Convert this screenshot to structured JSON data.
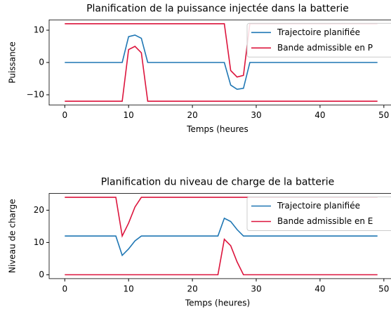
{
  "chart_data": [
    {
      "type": "line",
      "title": "Planification de la puissance injectée dans la batterie",
      "xlabel": "Temps (heures",
      "ylabel": "Puissance",
      "x": [
        0,
        1,
        2,
        3,
        4,
        5,
        6,
        7,
        8,
        9,
        10,
        11,
        12,
        13,
        14,
        15,
        16,
        17,
        18,
        19,
        20,
        21,
        22,
        23,
        24,
        25,
        26,
        27,
        28,
        29,
        30,
        31,
        32,
        33,
        34,
        35,
        36,
        37,
        38,
        39,
        40,
        41,
        42,
        43,
        44,
        45,
        46,
        47,
        48,
        49
      ],
      "series": [
        {
          "name": "Trajectoire planifiée",
          "color": "#1f77b4",
          "values": [
            0,
            0,
            0,
            0,
            0,
            0,
            0,
            0,
            0,
            0,
            8,
            8.5,
            7.5,
            0,
            0,
            0,
            0,
            0,
            0,
            0,
            0,
            0,
            0,
            0,
            0,
            0,
            -7,
            -8.3,
            -8,
            0,
            0,
            0,
            0,
            0,
            0,
            0,
            0,
            0,
            0,
            0,
            0,
            0,
            0,
            0,
            0,
            0,
            0,
            0,
            0,
            0
          ]
        },
        {
          "name": "Bande admissible en P",
          "color": "#dc143c",
          "values": [
            12,
            12,
            12,
            12,
            12,
            12,
            12,
            12,
            12,
            12,
            12,
            12,
            12,
            12,
            12,
            12,
            12,
            12,
            12,
            12,
            12,
            12,
            12,
            12,
            12,
            12,
            -2.5,
            -4.5,
            -4,
            12,
            12,
            12,
            12,
            12,
            12,
            12,
            12,
            12,
            12,
            12,
            12,
            12,
            12,
            12,
            12,
            12,
            12,
            12,
            12,
            12
          ]
        },
        {
          "color": "#dc143c",
          "values": [
            -12,
            -12,
            -12,
            -12,
            -12,
            -12,
            -12,
            -12,
            -12,
            -12,
            4,
            5,
            3,
            -12,
            -12,
            -12,
            -12,
            -12,
            -12,
            -12,
            -12,
            -12,
            -12,
            -12,
            -12,
            -12,
            -12,
            -12,
            -12,
            -12,
            -12,
            -12,
            -12,
            -12,
            -12,
            -12,
            -12,
            -12,
            -12,
            -12,
            -12,
            -12,
            -12,
            -12,
            -12,
            -12,
            -12,
            -12,
            -12,
            -12
          ]
        }
      ],
      "xlim": [
        -2.45,
        51.45
      ],
      "xticks": [
        0,
        10,
        20,
        30,
        40,
        50
      ],
      "ylim": [
        -13.2,
        13.2
      ],
      "yticks": [
        {
          "value": -10,
          "label": "−10"
        },
        0,
        10
      ],
      "legend": "upper right"
    },
    {
      "type": "line",
      "title": "Planification du niveau de charge de la batterie",
      "xlabel": "Temps (heures)",
      "ylabel": "Niveau de charge",
      "x": [
        0,
        1,
        2,
        3,
        4,
        5,
        6,
        7,
        8,
        9,
        10,
        11,
        12,
        13,
        14,
        15,
        16,
        17,
        18,
        19,
        20,
        21,
        22,
        23,
        24,
        25,
        26,
        27,
        28,
        29,
        30,
        31,
        32,
        33,
        34,
        35,
        36,
        37,
        38,
        39,
        40,
        41,
        42,
        43,
        44,
        45,
        46,
        47,
        48,
        49
      ],
      "series": [
        {
          "name": "Trajectoire planifiée",
          "color": "#1f77b4",
          "values": [
            12,
            12,
            12,
            12,
            12,
            12,
            12,
            12,
            12,
            6,
            8,
            10.5,
            12,
            12,
            12,
            12,
            12,
            12,
            12,
            12,
            12,
            12,
            12,
            12,
            12,
            17.5,
            16.5,
            14,
            12,
            12,
            12,
            12,
            12,
            12,
            12,
            12,
            12,
            12,
            12,
            12,
            12,
            12,
            12,
            12,
            12,
            12,
            12,
            12,
            12,
            12
          ]
        },
        {
          "name": "Bande admissible en E",
          "color": "#dc143c",
          "values": [
            24,
            24,
            24,
            24,
            24,
            24,
            24,
            24,
            24,
            12,
            16,
            21,
            24,
            24,
            24,
            24,
            24,
            24,
            24,
            24,
            24,
            24,
            24,
            24,
            24,
            24,
            24,
            24,
            24,
            24,
            24,
            24,
            24,
            24,
            24,
            24,
            24,
            24,
            24,
            24,
            24,
            24,
            24,
            24,
            24,
            24,
            24,
            24,
            24,
            24
          ]
        },
        {
          "color": "#dc143c",
          "values": [
            0,
            0,
            0,
            0,
            0,
            0,
            0,
            0,
            0,
            0,
            0,
            0,
            0,
            0,
            0,
            0,
            0,
            0,
            0,
            0,
            0,
            0,
            0,
            0,
            0,
            11,
            9,
            4,
            0,
            0,
            0,
            0,
            0,
            0,
            0,
            0,
            0,
            0,
            0,
            0,
            0,
            0,
            0,
            0,
            0,
            0,
            0,
            0,
            0,
            0
          ]
        }
      ],
      "xlim": [
        -2.45,
        51.45
      ],
      "xticks": [
        0,
        10,
        20,
        30,
        40,
        50
      ],
      "ylim": [
        -1.2,
        25.2
      ],
      "yticks": [
        0,
        10,
        20
      ],
      "legend": "upper right"
    }
  ]
}
